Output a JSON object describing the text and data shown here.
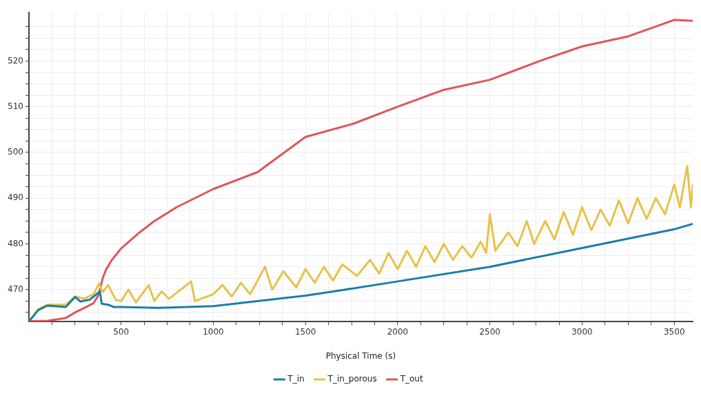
{
  "chart_data": {
    "type": "line",
    "xlabel": "Physical Time (s)",
    "xlim": [
      0,
      3600
    ],
    "ylim": [
      463,
      530.6
    ],
    "xticks": [
      {
        "value": 125,
        "label": null
      },
      {
        "value": 250,
        "label": null
      },
      {
        "value": 375,
        "label": null
      },
      500,
      {
        "value": 625,
        "label": null
      },
      {
        "value": 750,
        "label": null
      },
      {
        "value": 875,
        "label": null
      },
      1000,
      {
        "value": 1125,
        "label": null
      },
      {
        "value": 1250,
        "label": null
      },
      {
        "value": 1375,
        "label": null
      },
      1500,
      {
        "value": 1625,
        "label": null
      },
      {
        "value": 1750,
        "label": null
      },
      {
        "value": 1875,
        "label": null
      },
      2000,
      {
        "value": 2125,
        "label": null
      },
      {
        "value": 2250,
        "label": null
      },
      {
        "value": 2375,
        "label": null
      },
      2500,
      {
        "value": 2625,
        "label": null
      },
      {
        "value": 2750,
        "label": null
      },
      {
        "value": 2875,
        "label": null
      },
      3000,
      {
        "value": 3125,
        "label": null
      },
      {
        "value": 3250,
        "label": null
      },
      {
        "value": 3375,
        "label": null
      },
      3500
    ],
    "yticks": [
      {
        "value": 465,
        "label": null
      },
      {
        "value": 467.5,
        "label": null
      },
      470,
      {
        "value": 472.5,
        "label": null
      },
      {
        "value": 475,
        "label": null
      },
      {
        "value": 477.5,
        "label": null
      },
      480,
      {
        "value": 482.5,
        "label": null
      },
      {
        "value": 485,
        "label": null
      },
      {
        "value": 487.5,
        "label": null
      },
      490,
      {
        "value": 492.5,
        "label": null
      },
      {
        "value": 495,
        "label": null
      },
      {
        "value": 497.5,
        "label": null
      },
      500,
      {
        "value": 502.5,
        "label": null
      },
      {
        "value": 505,
        "label": null
      },
      {
        "value": 507.5,
        "label": null
      },
      510,
      {
        "value": 512.5,
        "label": null
      },
      {
        "value": 515,
        "label": null
      },
      {
        "value": 517.5,
        "label": null
      },
      520,
      {
        "value": 522.5,
        "label": null
      },
      {
        "value": 525,
        "label": null
      },
      {
        "value": 527.5,
        "label": null
      }
    ],
    "grid": true,
    "legend": "bottom",
    "marker": "none",
    "line_style": "solid",
    "series": [
      {
        "name": "T_in",
        "color": "#1a7ea8",
        "x": [
          0,
          50,
          100,
          200,
          250,
          280,
          330,
          385,
          395,
          430,
          460,
          500,
          700,
          1000,
          1500,
          1700,
          2000,
          2500,
          3000,
          3500,
          3600
        ],
        "values": [
          463,
          465.5,
          466.5,
          466.2,
          468.4,
          467.4,
          467.8,
          469.6,
          466.9,
          466.7,
          466.2,
          466.2,
          466,
          466.4,
          468.7,
          469.9,
          471.8,
          475,
          479.1,
          483.2,
          484.4
        ]
      },
      {
        "name": "T_in_porous",
        "color": "#e8c14a",
        "x": [
          0,
          50,
          100,
          200,
          250,
          300,
          350,
          380,
          400,
          430,
          470,
          500,
          540,
          580,
          650,
          680,
          720,
          760,
          880,
          900,
          1000,
          1050,
          1100,
          1150,
          1200,
          1280,
          1320,
          1380,
          1450,
          1500,
          1550,
          1600,
          1650,
          1700,
          1780,
          1850,
          1900,
          1950,
          2000,
          2050,
          2100,
          2150,
          2200,
          2250,
          2300,
          2350,
          2400,
          2450,
          2480,
          2500,
          2530,
          2600,
          2650,
          2700,
          2740,
          2800,
          2850,
          2900,
          2950,
          3000,
          3050,
          3100,
          3150,
          3200,
          3250,
          3300,
          3350,
          3400,
          3450,
          3500,
          3530,
          3570,
          3590,
          3600
        ],
        "values": [
          463,
          465.7,
          466.7,
          466.7,
          468.5,
          468,
          469,
          471.3,
          469.5,
          471,
          467.8,
          467.5,
          470,
          467.2,
          471,
          467.5,
          469.6,
          468,
          471.8,
          467.5,
          469,
          471,
          468.5,
          471.5,
          469,
          475,
          470,
          474,
          470.5,
          474.5,
          471.5,
          475,
          472,
          475.5,
          473,
          476.5,
          473.5,
          478,
          474.5,
          478.5,
          475,
          479.5,
          476,
          480,
          476.5,
          479.5,
          477,
          480.5,
          478,
          486.5,
          478.5,
          482.5,
          479.5,
          485,
          480,
          485,
          481,
          487,
          482,
          488,
          483,
          487.5,
          484,
          489.5,
          484.5,
          490,
          485.5,
          490,
          486.5,
          493,
          488,
          497,
          488,
          493
        ]
      },
      {
        "name": "T_out",
        "color": "#e0545a",
        "x": [
          0,
          100,
          200,
          250,
          300,
          350,
          380,
          400,
          420,
          450,
          500,
          600,
          680,
          800,
          1000,
          1240,
          1500,
          1760,
          2000,
          2250,
          2500,
          2770,
          3000,
          3250,
          3500,
          3600
        ],
        "values": [
          463.1,
          463.2,
          463.8,
          465,
          466,
          467,
          469,
          472.5,
          474.5,
          476.5,
          479,
          482.5,
          485,
          488,
          492,
          495.7,
          503.4,
          506.3,
          510,
          513.7,
          515.9,
          520,
          523.2,
          525.4,
          529,
          528.8
        ]
      }
    ]
  }
}
